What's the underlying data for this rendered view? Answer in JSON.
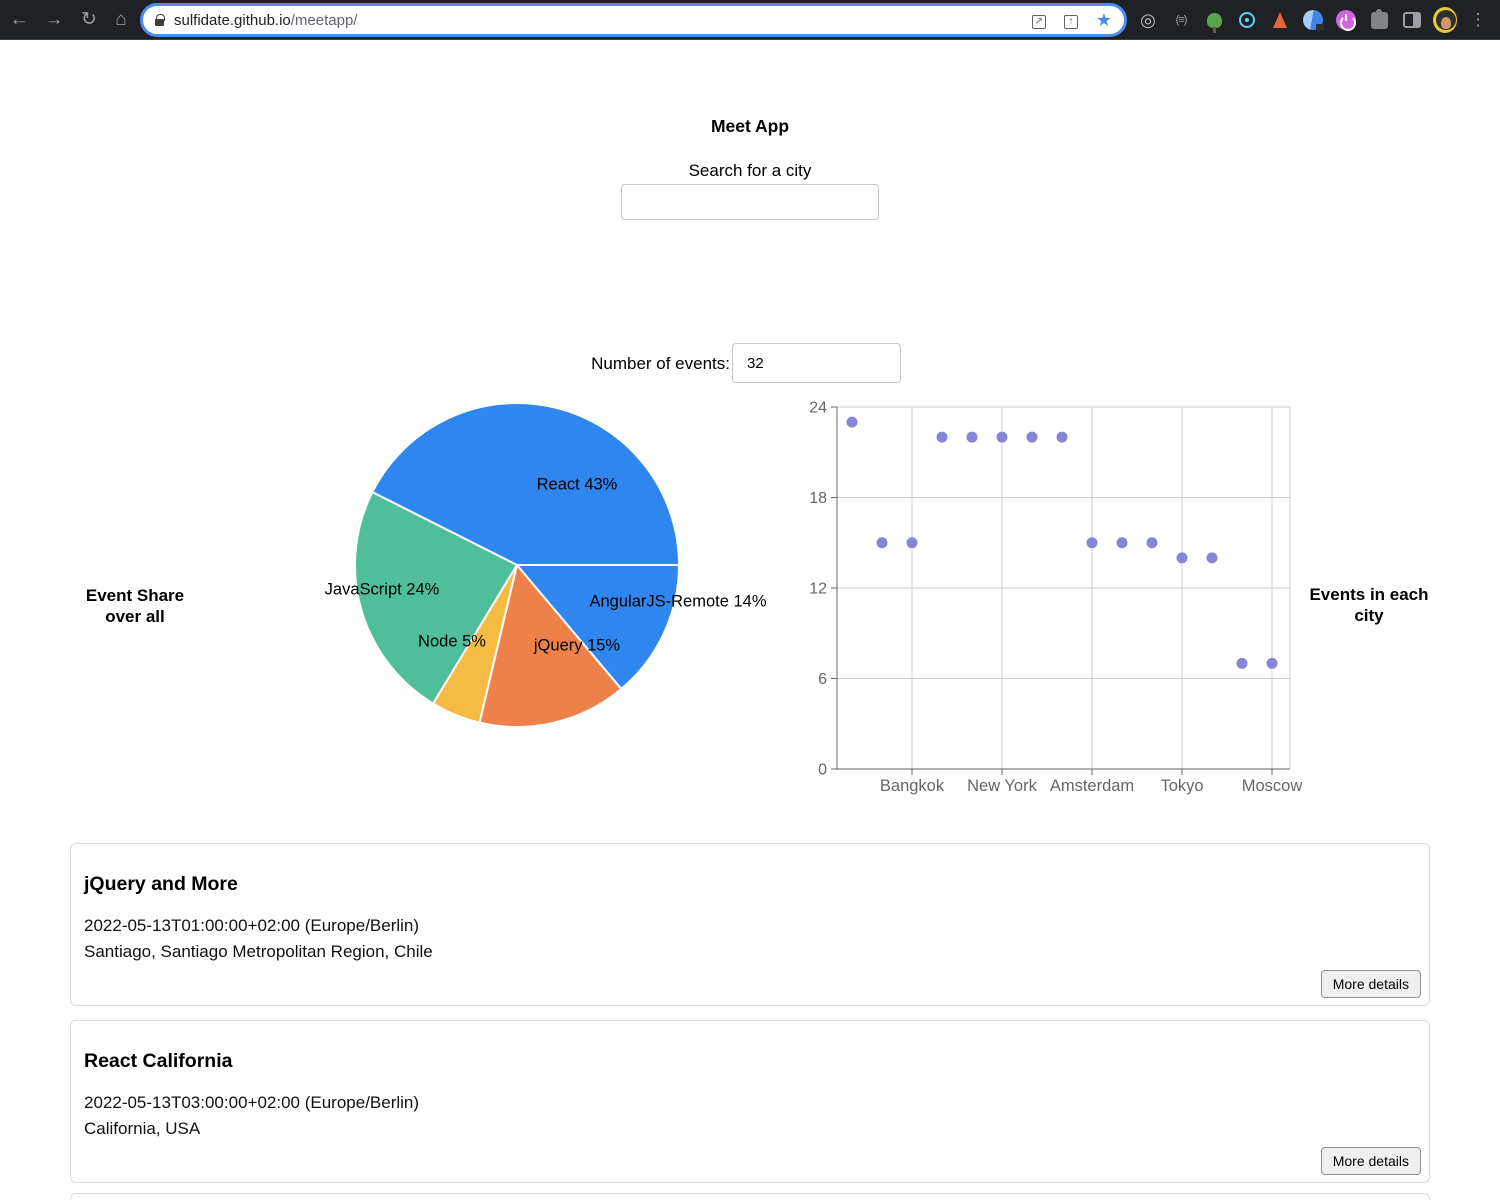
{
  "browser": {
    "url": {
      "domain": "sulfidate.github.io",
      "path": "/meetapp/"
    },
    "bookmark_starred": true,
    "extension_badge_text": "(≡)"
  },
  "app": {
    "title": "Meet App",
    "search": {
      "label": "Search for a city",
      "value": ""
    },
    "events_count": {
      "label": "Number of events:",
      "value": "32"
    },
    "pie_caption": [
      "Event Share",
      "over all"
    ],
    "scatter_caption": [
      "Events in each",
      "city"
    ]
  },
  "chart_data": [
    {
      "type": "pie",
      "title": "Event Share over all",
      "labels": [
        "React",
        "JavaScript",
        "Node",
        "jQuery",
        "AngularJS-Remote"
      ],
      "values_percent": [
        43,
        24,
        5,
        15,
        14
      ],
      "display_labels": [
        "React 43%",
        "JavaScript 24%",
        "Node 5%",
        "jQuery 15%",
        "AngularJS-Remote 14%"
      ],
      "colors": [
        "#2F86EF",
        "#4FBE9B",
        "#F6BB43",
        "#EE8149",
        "#2F86EF"
      ],
      "start_angle_deg": 0,
      "direction": "counterclockwise",
      "slice_border_color": "#ffffff"
    },
    {
      "type": "scatter",
      "title": "Events in each city",
      "x_tick_labels": [
        "Bangkok",
        "New York",
        "Amsterdam",
        "Tokyo",
        "Moscow"
      ],
      "x_tick_indices": [
        2,
        5,
        8,
        11,
        14
      ],
      "points": [
        {
          "x": 0,
          "y": 23
        },
        {
          "x": 1,
          "y": 15
        },
        {
          "x": 2,
          "y": 15
        },
        {
          "x": 3,
          "y": 22
        },
        {
          "x": 4,
          "y": 22
        },
        {
          "x": 5,
          "y": 22
        },
        {
          "x": 6,
          "y": 22
        },
        {
          "x": 7,
          "y": 22
        },
        {
          "x": 8,
          "y": 15
        },
        {
          "x": 9,
          "y": 15
        },
        {
          "x": 10,
          "y": 15
        },
        {
          "x": 11,
          "y": 14
        },
        {
          "x": 12,
          "y": 14
        },
        {
          "x": 13,
          "y": 7
        },
        {
          "x": 14,
          "y": 7
        }
      ],
      "y_ticks": [
        0,
        6,
        12,
        18,
        24
      ],
      "ylim": [
        0,
        24
      ],
      "point_color": "#8884d8",
      "grid": true,
      "grid_color": "#cccccc",
      "axis_color": "#666666"
    }
  ],
  "event_cards": [
    {
      "title": "jQuery and More",
      "datetime": "2022-05-13T01:00:00+02:00 (Europe/Berlin)",
      "location": "Santiago, Santiago Metropolitan Region, Chile",
      "details_label": "More details"
    },
    {
      "title": "React California",
      "datetime": "2022-05-13T03:00:00+02:00 (Europe/Berlin)",
      "location": "California, USA",
      "details_label": "More details"
    }
  ]
}
